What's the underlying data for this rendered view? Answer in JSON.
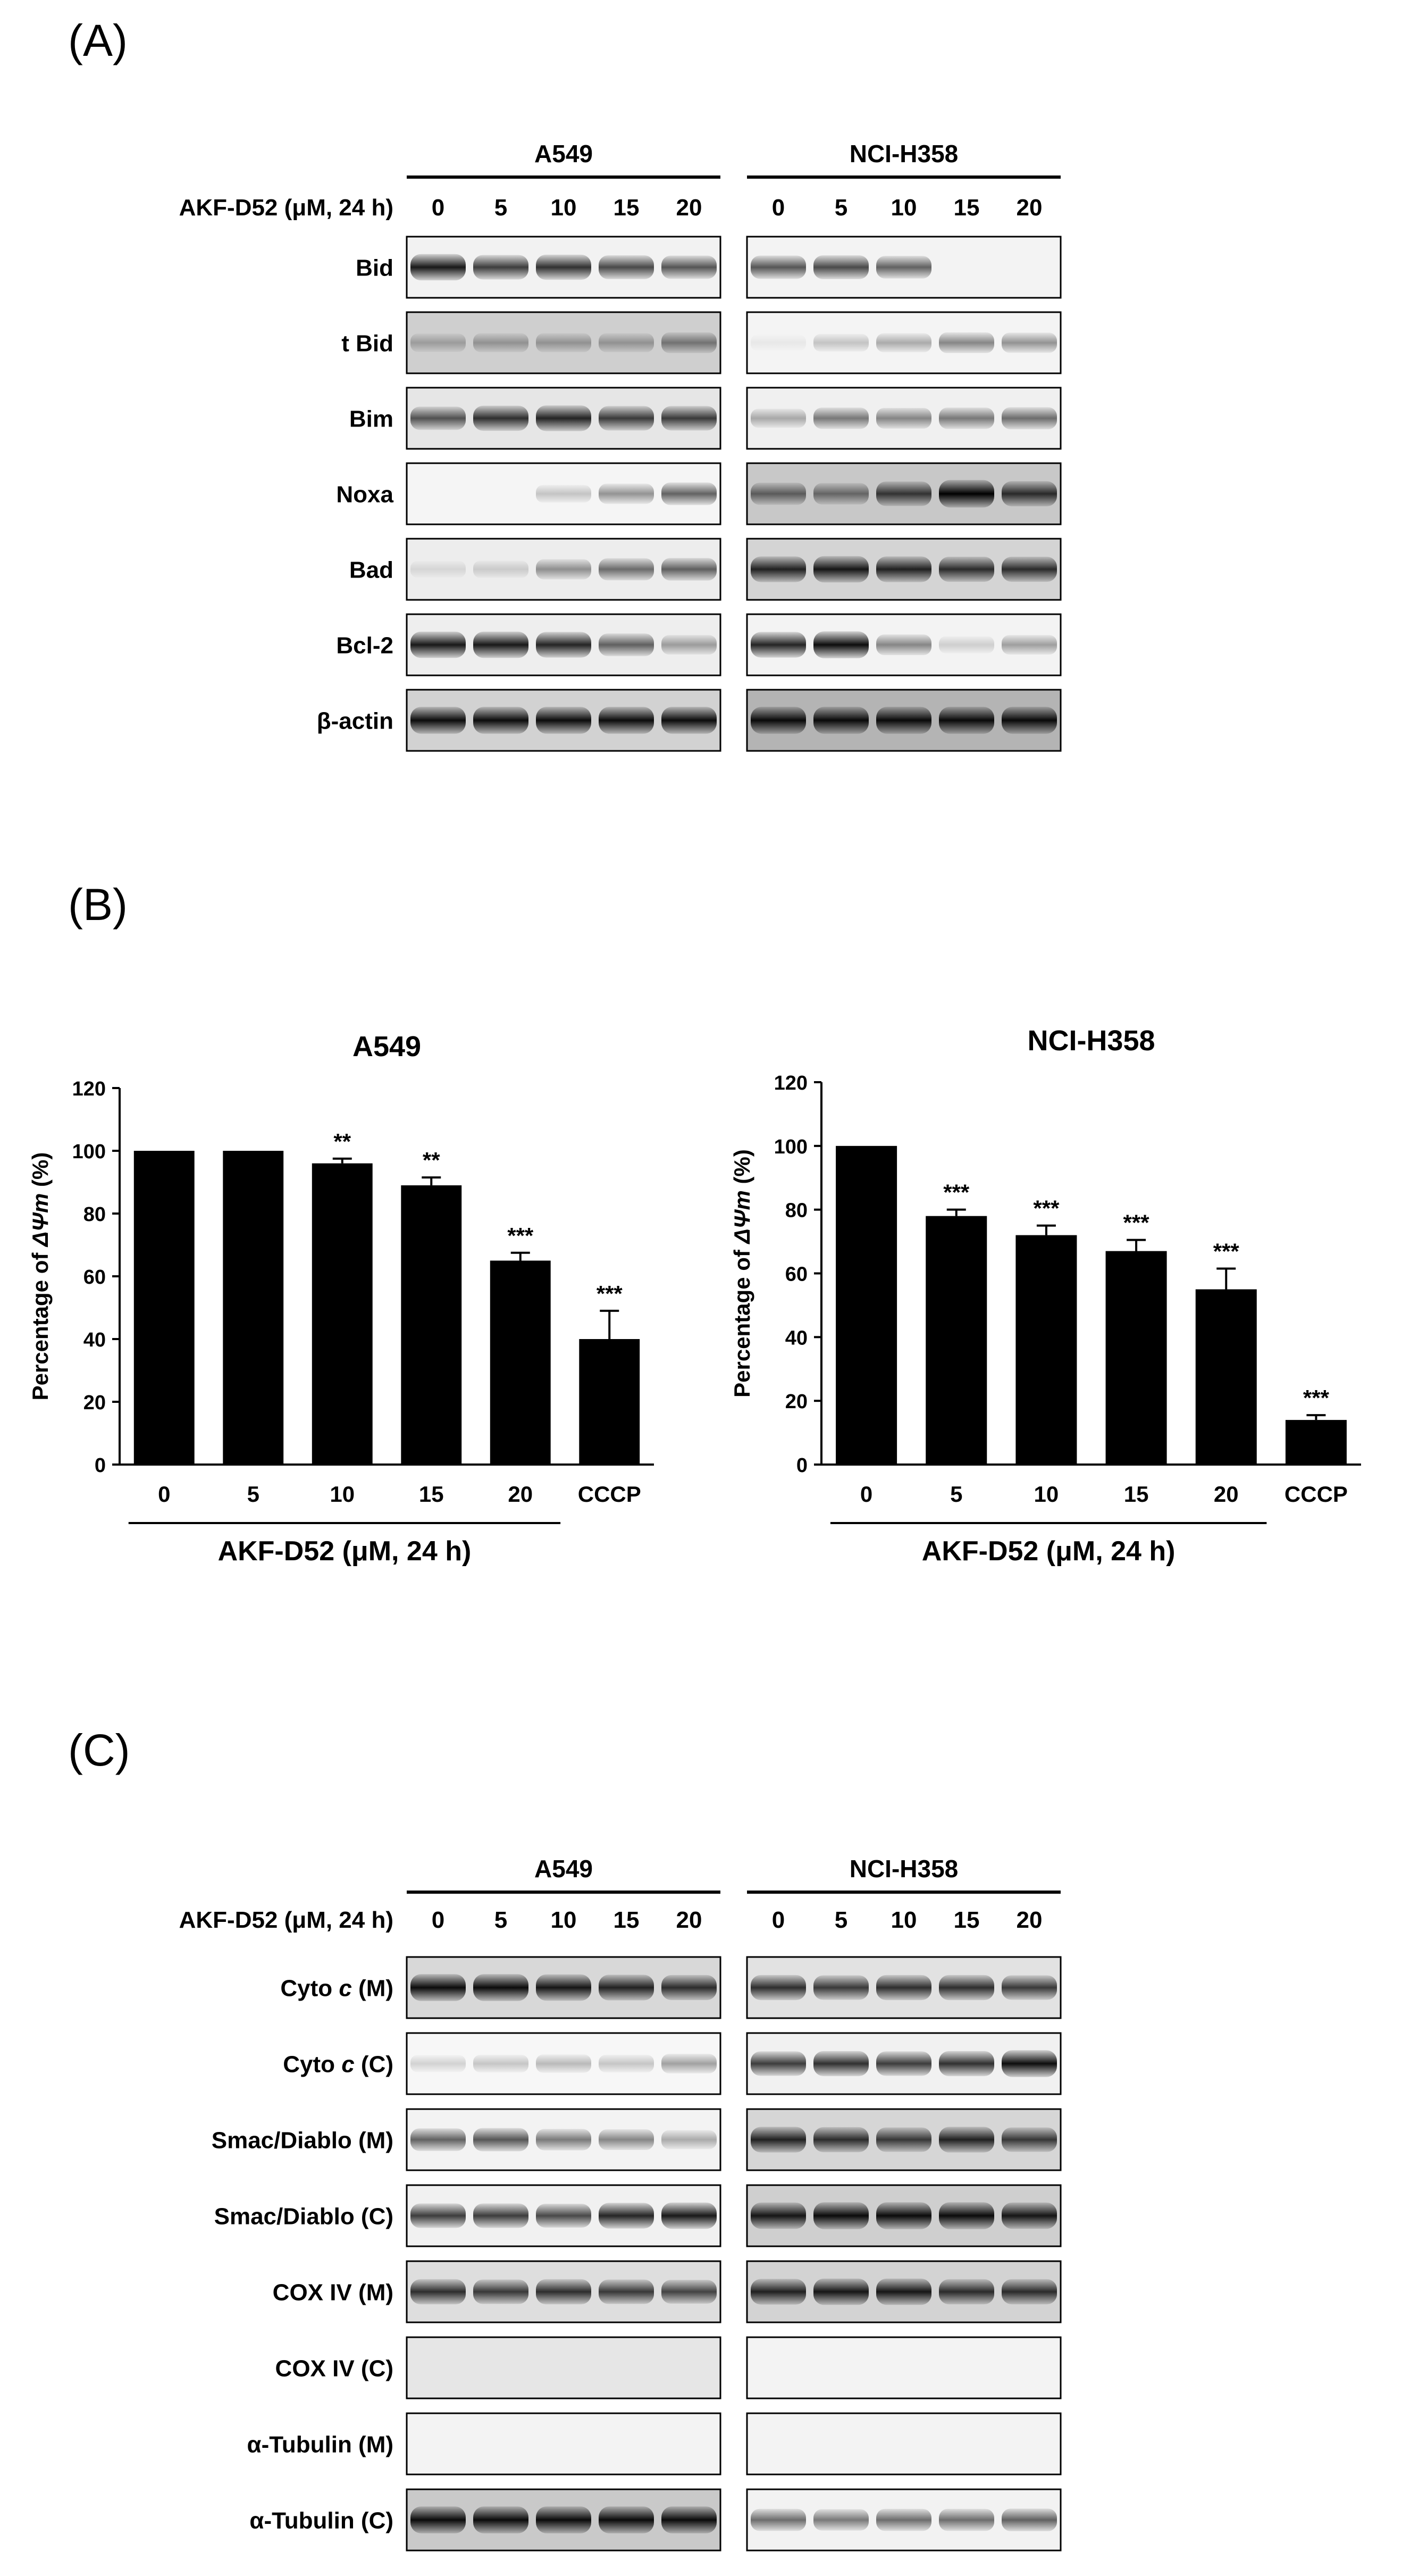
{
  "figure": {
    "panel_a": {
      "label": "(A)",
      "treatment_label": "AKF-D52 (μM, 24 h)",
      "cell_lines": [
        "A549",
        "NCI-H358"
      ],
      "doses": [
        "0",
        "5",
        "10",
        "15",
        "20"
      ],
      "proteins": [
        "Bid",
        "t Bid",
        "Bim",
        "Noxa",
        "Bad",
        "Bcl-2",
        "β-actin"
      ]
    },
    "panel_b": {
      "label": "(B)"
    },
    "panel_c": {
      "label": "(C)",
      "treatment_label": "AKF-D52 (μM, 24 h)",
      "cell_lines": [
        "A549",
        "NCI-H358"
      ],
      "doses": [
        "0",
        "5",
        "10",
        "15",
        "20"
      ],
      "proteins": [
        {
          "prefix": "Cyto ",
          "italic": "c",
          "suffix": " (M)"
        },
        {
          "prefix": "Cyto ",
          "italic": "c",
          "suffix": " (C)"
        },
        {
          "prefix": "Smac/Diablo (M)",
          "italic": "",
          "suffix": ""
        },
        {
          "prefix": "Smac/Diablo (C)",
          "italic": "",
          "suffix": ""
        },
        {
          "prefix": "COX IV (M)",
          "italic": "",
          "suffix": ""
        },
        {
          "prefix": "COX IV (C)",
          "italic": "",
          "suffix": ""
        },
        {
          "prefix": "α-Tubulin (M)",
          "italic": "",
          "suffix": ""
        },
        {
          "prefix": "α-Tubulin (C)",
          "italic": "",
          "suffix": ""
        }
      ]
    }
  },
  "chart_data": [
    {
      "type": "bar",
      "title": "A549",
      "ylabel_prefix": "Percentage of ",
      "ylabel_italic": "ΔΨm",
      "ylabel_suffix": " (%)",
      "xlabel": "AKF-D52 (μM, 24 h)",
      "categories": [
        "0",
        "5",
        "10",
        "15",
        "20",
        "CCCP"
      ],
      "values": [
        100,
        100,
        96,
        89,
        65,
        40
      ],
      "errors": [
        0,
        0,
        1.5,
        2.5,
        2.5,
        9
      ],
      "significance": [
        "",
        "",
        "**",
        "**",
        "***",
        "***"
      ],
      "ylim": [
        0,
        120
      ],
      "yticks": [
        0,
        20,
        40,
        60,
        80,
        100,
        120
      ],
      "bar_color": "#000000"
    },
    {
      "type": "bar",
      "title": "NCI-H358",
      "ylabel_prefix": "Percentage of ",
      "ylabel_italic": "ΔΨm",
      "ylabel_suffix": " (%)",
      "xlabel": "AKF-D52 (μM, 24 h)",
      "categories": [
        "0",
        "5",
        "10",
        "15",
        "20",
        "CCCP"
      ],
      "values": [
        100,
        78,
        72,
        67,
        55,
        14
      ],
      "errors": [
        0,
        2,
        3,
        3.5,
        6.5,
        1.5
      ],
      "significance": [
        "",
        "***",
        "***",
        "***",
        "***",
        "***"
      ],
      "ylim": [
        0,
        120
      ],
      "yticks": [
        0,
        20,
        40,
        60,
        80,
        100,
        120
      ],
      "bar_color": "#000000"
    }
  ]
}
